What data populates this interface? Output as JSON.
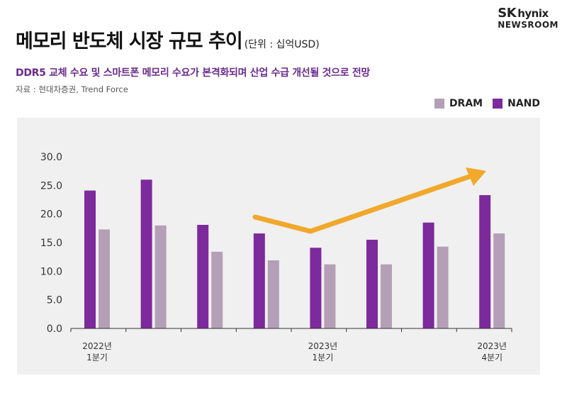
{
  "header": {
    "title": "메모리 반도체 시장 규모 추이",
    "unit": "(단위 : 십억USD)",
    "subtitle": "DDR5 교체 수요 및 스마트폰 메모리 수요가 본격화되며 산업 수급 개선될 것으로 전망",
    "source": "자료 : 현대차증권, Trend Force"
  },
  "logo": {
    "brand": "SK",
    "sub": "hynix",
    "newsroom": "NEWSROOM"
  },
  "chart_data": {
    "type": "bar",
    "categories": [
      "2022년\n1분기",
      "",
      "",
      "",
      "2023년\n1분기",
      "",
      "",
      "2023년\n4분기"
    ],
    "series": [
      {
        "name": "NAND",
        "color": "#7d2a9c",
        "values": [
          24.1,
          26.0,
          18.1,
          16.6,
          14.1,
          15.5,
          18.5,
          23.3
        ]
      },
      {
        "name": "DRAM",
        "color": "#b49fb6",
        "values": [
          17.3,
          18.0,
          13.4,
          11.9,
          11.2,
          11.2,
          14.3,
          16.6
        ]
      }
    ],
    "legend": [
      "DRAM",
      "NAND"
    ],
    "yticks": [
      "0.0",
      "5.0",
      "10.0",
      "15.0",
      "20.0",
      "25.0",
      "30.0"
    ],
    "ylim": [
      0,
      30
    ],
    "grid": false,
    "legend_position": "top-right",
    "trend_arrow": {
      "color": "#f1a82b"
    }
  }
}
